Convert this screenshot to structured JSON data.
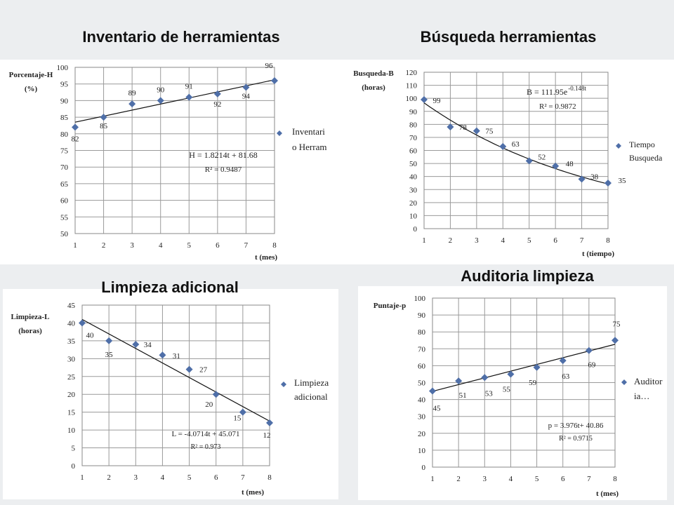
{
  "chart_data": [
    {
      "type": "scatter",
      "title": "Inventario de herramientas",
      "ylabel_lines": [
        "Porcentaje-H",
        "(%)"
      ],
      "xlabel": "t (mes)",
      "xlim": [
        1,
        8
      ],
      "ylim": [
        50,
        100
      ],
      "xticks": [
        1,
        2,
        3,
        4,
        5,
        6,
        7,
        8
      ],
      "yticks": [
        50,
        55,
        60,
        65,
        70,
        75,
        80,
        85,
        90,
        95,
        100
      ],
      "grid": true,
      "legend_position": "right",
      "series": [
        {
          "name_lines": [
            "Inventari",
            "o Herram"
          ],
          "x": [
            1,
            2,
            3,
            4,
            5,
            6,
            7,
            8
          ],
          "y": [
            82,
            85,
            89,
            90,
            91,
            92,
            94,
            96
          ],
          "data_labels": [
            "82",
            "85",
            "89",
            "90",
            "91",
            "92",
            "94",
            "96"
          ]
        }
      ],
      "trendline": {
        "kind": "linear",
        "equation": "H = 1.8214t + 81.68",
        "r2": "R² = 0.9487"
      },
      "color": "#4f6fa8"
    },
    {
      "type": "scatter",
      "title": "Búsqueda herramientas",
      "ylabel_lines": [
        "Busqueda-B",
        "(horas)"
      ],
      "xlabel": "t (tiempo)",
      "xlim": [
        1,
        8
      ],
      "ylim": [
        0,
        120
      ],
      "xticks": [
        1,
        2,
        3,
        4,
        5,
        6,
        7,
        8
      ],
      "yticks": [
        0,
        10,
        20,
        30,
        40,
        50,
        60,
        70,
        80,
        90,
        100,
        110,
        120
      ],
      "grid": true,
      "legend_position": "right",
      "series": [
        {
          "name_lines": [
            "Tiempo",
            "Busqueda"
          ],
          "x": [
            1,
            2,
            3,
            4,
            5,
            6,
            7,
            8
          ],
          "y": [
            99,
            78,
            75,
            63,
            52,
            48,
            38,
            35
          ],
          "data_labels": [
            "99",
            "78",
            "75",
            "63",
            "52",
            "48",
            "38",
            "35"
          ]
        }
      ],
      "trendline": {
        "kind": "exponential",
        "a": 111.95,
        "b": -0.148,
        "equation": "B = 111.95e",
        "equation_exponent": "-0.148t",
        "r2": "R² = 0.9872"
      },
      "color": "#4f6fa8"
    },
    {
      "type": "scatter",
      "title": "Limpieza adicional",
      "ylabel_lines": [
        "Limpieza-L",
        "(horas)"
      ],
      "xlabel": "t (mes)",
      "xlim": [
        1,
        8
      ],
      "ylim": [
        0,
        45
      ],
      "xticks": [
        1,
        2,
        3,
        4,
        5,
        6,
        7,
        8
      ],
      "yticks": [
        0,
        5,
        10,
        15,
        20,
        25,
        30,
        35,
        40,
        45
      ],
      "grid": true,
      "legend_position": "right",
      "series": [
        {
          "name_lines": [
            "Limpieza",
            "adicional"
          ],
          "x": [
            1,
            2,
            3,
            4,
            5,
            6,
            7,
            8
          ],
          "y": [
            40,
            35,
            34,
            31,
            27,
            20,
            15,
            12
          ],
          "data_labels": [
            "40",
            "35",
            "34",
            "31",
            "27",
            "20",
            "15",
            "12"
          ]
        }
      ],
      "trendline": {
        "kind": "linear",
        "equation": "L = -4.0714t + 45.071",
        "r2": "R² = 0.973"
      },
      "color": "#4f6fa8"
    },
    {
      "type": "scatter",
      "title": "Auditoria limpieza",
      "ylabel_lines": [
        "Puntaje-p"
      ],
      "xlabel": "t (mes)",
      "xlim": [
        1,
        8
      ],
      "ylim": [
        0,
        100
      ],
      "xticks": [
        1,
        2,
        3,
        4,
        5,
        6,
        7,
        8
      ],
      "yticks": [
        0,
        10,
        20,
        30,
        40,
        50,
        60,
        70,
        80,
        90,
        100
      ],
      "grid": true,
      "legend_position": "right",
      "series": [
        {
          "name_lines": [
            "Auditor",
            "ia…"
          ],
          "x": [
            1,
            2,
            3,
            4,
            5,
            6,
            7,
            8
          ],
          "y": [
            45,
            51,
            53,
            55,
            59,
            63,
            69,
            75
          ],
          "data_labels": [
            "45",
            "51",
            "53",
            "55",
            "59",
            "63",
            "69",
            "75"
          ]
        }
      ],
      "trendline": {
        "kind": "linear",
        "equation": "p = 3.976t+ 40.86",
        "r2": "R² = 0.9715"
      },
      "color": "#4f6fa8"
    }
  ]
}
